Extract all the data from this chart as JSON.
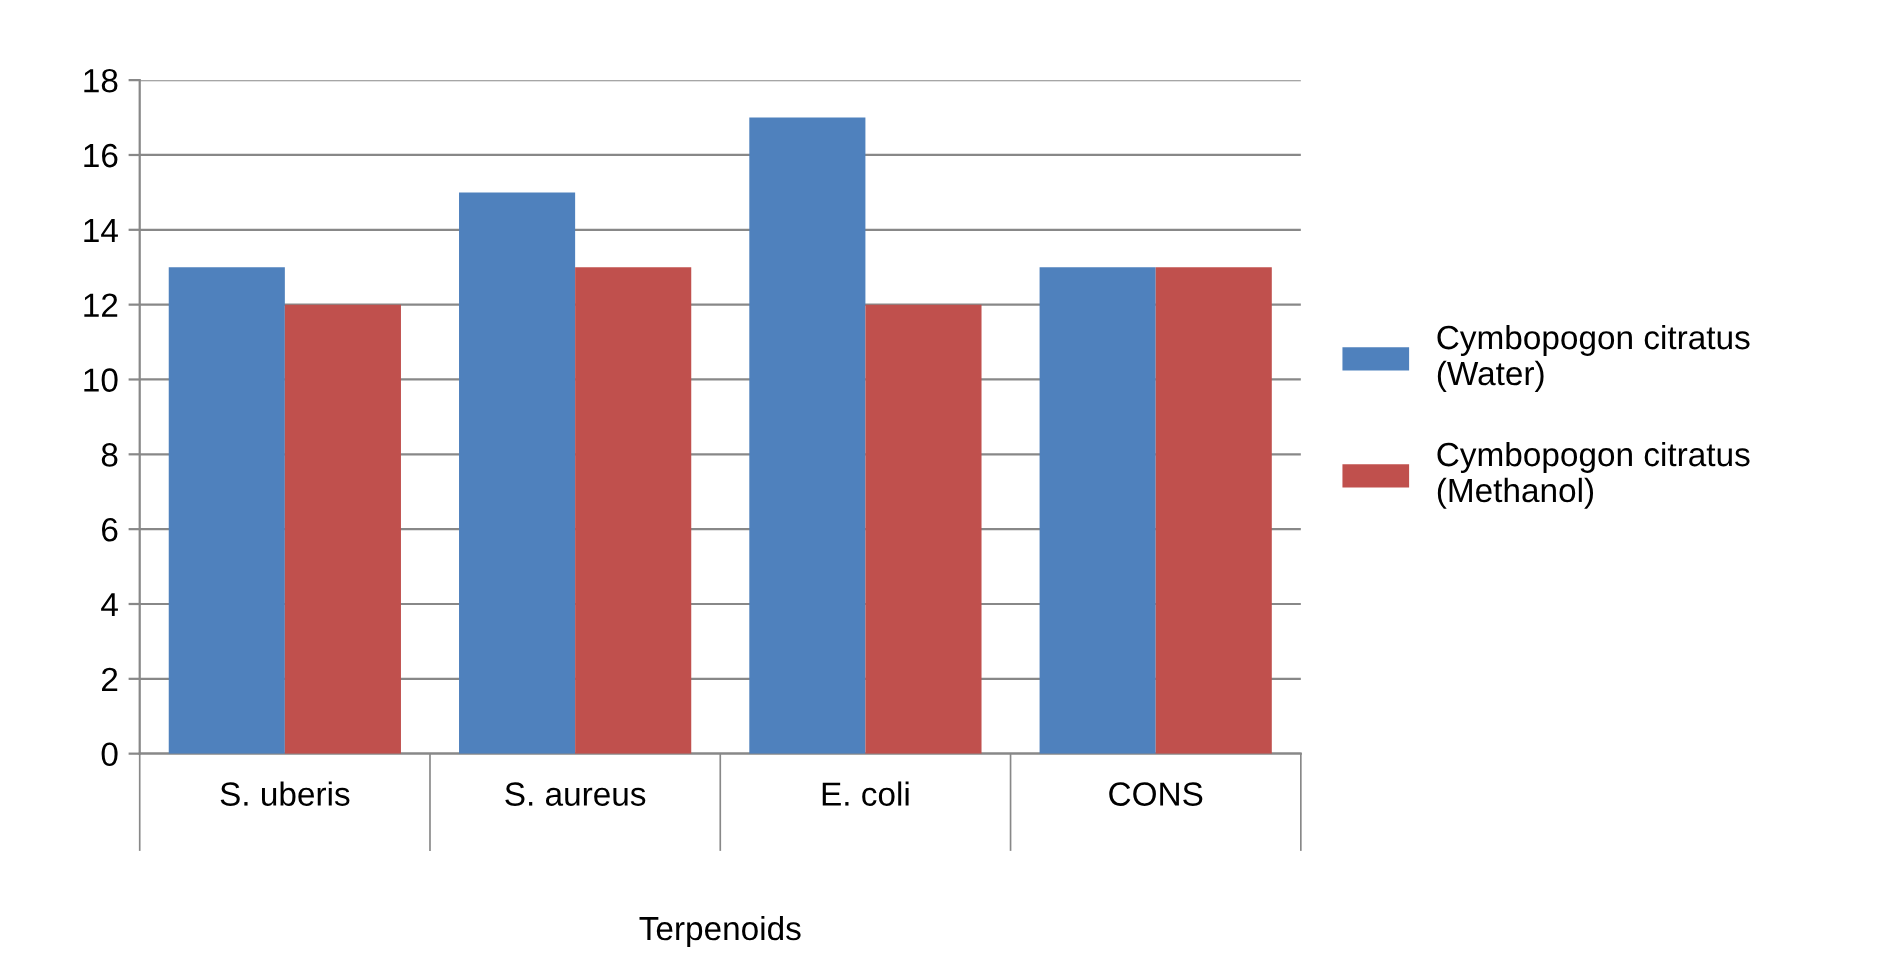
{
  "chart_data": {
    "type": "bar",
    "xlabel": "Terpenoids",
    "categories": [
      "S. uberis",
      "S. aureus",
      "E. coli",
      "CONS"
    ],
    "series": [
      {
        "name": "Cymbopogon citratus (Water)",
        "color": "#4f81bd",
        "values": [
          13,
          15,
          17,
          13
        ]
      },
      {
        "name": "Cymbopogon citratus (Methanol)",
        "color": "#c0504d",
        "values": [
          12,
          13,
          12,
          13
        ]
      }
    ],
    "ylim": [
      0,
      18
    ],
    "yticks": [
      0,
      2,
      4,
      6,
      8,
      10,
      12,
      14,
      16,
      18
    ],
    "grid": "y",
    "legend": "right"
  }
}
